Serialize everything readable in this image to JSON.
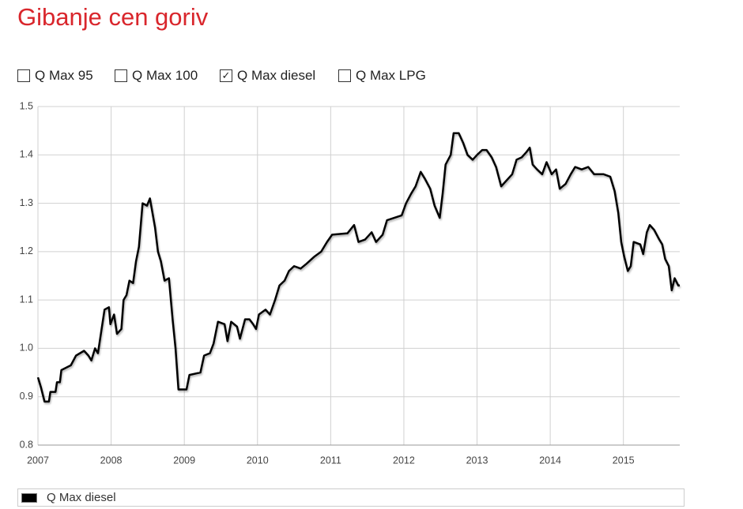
{
  "chart_data": {
    "type": "line",
    "title": "Gibanje cen goriv",
    "controls": [
      {
        "label": "Q Max 95",
        "checked": false
      },
      {
        "label": "Q Max 100",
        "checked": false
      },
      {
        "label": "Q Max diesel",
        "checked": true
      },
      {
        "label": "Q Max LPG",
        "checked": false
      }
    ],
    "x": [
      2007.0,
      2007.04,
      2007.09,
      2007.15,
      2007.17,
      2007.24,
      2007.26,
      2007.3,
      2007.32,
      2007.45,
      2007.52,
      2007.63,
      2007.69,
      2007.73,
      2007.78,
      2007.82,
      2007.86,
      2007.91,
      2007.97,
      2007.99,
      2008.04,
      2008.08,
      2008.14,
      2008.17,
      2008.21,
      2008.25,
      2008.3,
      2008.34,
      2008.38,
      2008.43,
      2008.49,
      2008.53,
      2008.6,
      2008.64,
      2008.68,
      2008.73,
      2008.79,
      2008.84,
      2008.88,
      2008.92,
      2009.03,
      2009.07,
      2009.22,
      2009.27,
      2009.35,
      2009.4,
      2009.46,
      2009.55,
      2009.59,
      2009.64,
      2009.72,
      2009.76,
      2009.83,
      2009.89,
      2009.94,
      2009.98,
      2010.02,
      2010.11,
      2010.17,
      2010.24,
      2010.3,
      2010.37,
      2010.43,
      2010.5,
      2010.59,
      2010.67,
      2010.78,
      2010.87,
      2010.95,
      2011.02,
      2011.23,
      2011.32,
      2011.38,
      2011.47,
      2011.56,
      2011.62,
      2011.71,
      2011.77,
      2011.97,
      2012.03,
      2012.1,
      2012.16,
      2012.23,
      2012.29,
      2012.36,
      2012.42,
      2012.49,
      2012.53,
      2012.57,
      2012.64,
      2012.68,
      2012.75,
      2012.81,
      2012.87,
      2012.94,
      2013.0,
      2013.07,
      2013.13,
      2013.2,
      2013.26,
      2013.33,
      2013.39,
      2013.48,
      2013.54,
      2013.61,
      2013.67,
      2013.72,
      2013.76,
      2013.82,
      2013.89,
      2013.95,
      2014.02,
      2014.08,
      2014.13,
      2014.21,
      2014.28,
      2014.34,
      2014.43,
      2014.52,
      2014.6,
      2014.73,
      2014.82,
      2014.88,
      2014.93,
      2014.97,
      2015.01,
      2015.06,
      2015.1,
      2015.14,
      2015.23,
      2015.27,
      2015.32,
      2015.36,
      2015.42,
      2015.49,
      2015.53,
      2015.57,
      2015.62,
      2015.66,
      2015.7,
      2015.75,
      2015.77
    ],
    "series": [
      {
        "name": "Q Max diesel",
        "color": "#000000",
        "values": [
          0.94,
          0.92,
          0.89,
          0.89,
          0.91,
          0.91,
          0.93,
          0.93,
          0.955,
          0.965,
          0.985,
          0.995,
          0.985,
          0.975,
          1.0,
          0.99,
          1.03,
          1.08,
          1.085,
          1.05,
          1.07,
          1.03,
          1.04,
          1.1,
          1.11,
          1.14,
          1.135,
          1.18,
          1.21,
          1.3,
          1.295,
          1.31,
          1.25,
          1.2,
          1.18,
          1.14,
          1.145,
          1.06,
          1.0,
          0.915,
          0.915,
          0.945,
          0.95,
          0.985,
          0.99,
          1.01,
          1.055,
          1.05,
          1.015,
          1.055,
          1.045,
          1.02,
          1.06,
          1.06,
          1.05,
          1.04,
          1.07,
          1.08,
          1.07,
          1.1,
          1.13,
          1.14,
          1.16,
          1.17,
          1.165,
          1.175,
          1.19,
          1.2,
          1.22,
          1.235,
          1.238,
          1.255,
          1.22,
          1.225,
          1.24,
          1.22,
          1.235,
          1.265,
          1.275,
          1.3,
          1.32,
          1.335,
          1.365,
          1.35,
          1.33,
          1.295,
          1.27,
          1.32,
          1.38,
          1.4,
          1.445,
          1.445,
          1.425,
          1.4,
          1.39,
          1.4,
          1.41,
          1.41,
          1.395,
          1.375,
          1.335,
          1.345,
          1.36,
          1.39,
          1.395,
          1.405,
          1.415,
          1.38,
          1.37,
          1.36,
          1.385,
          1.36,
          1.37,
          1.33,
          1.34,
          1.36,
          1.375,
          1.37,
          1.375,
          1.36,
          1.36,
          1.355,
          1.325,
          1.28,
          1.22,
          1.19,
          1.16,
          1.17,
          1.22,
          1.215,
          1.195,
          1.24,
          1.255,
          1.245,
          1.225,
          1.215,
          1.185,
          1.17,
          1.12,
          1.145,
          1.13,
          1.13
        ]
      }
    ],
    "xlim": [
      2007,
      2015.77
    ],
    "xticks": [
      2007,
      2008,
      2009,
      2010,
      2011,
      2012,
      2013,
      2014,
      2015
    ],
    "ylim": [
      0.8,
      1.5
    ],
    "yticks": [
      0.8,
      0.9,
      {
        "value": 1,
        "label": "1.0"
      },
      1.1,
      1.2,
      1.3,
      1.4,
      1.5
    ],
    "grid": true
  }
}
